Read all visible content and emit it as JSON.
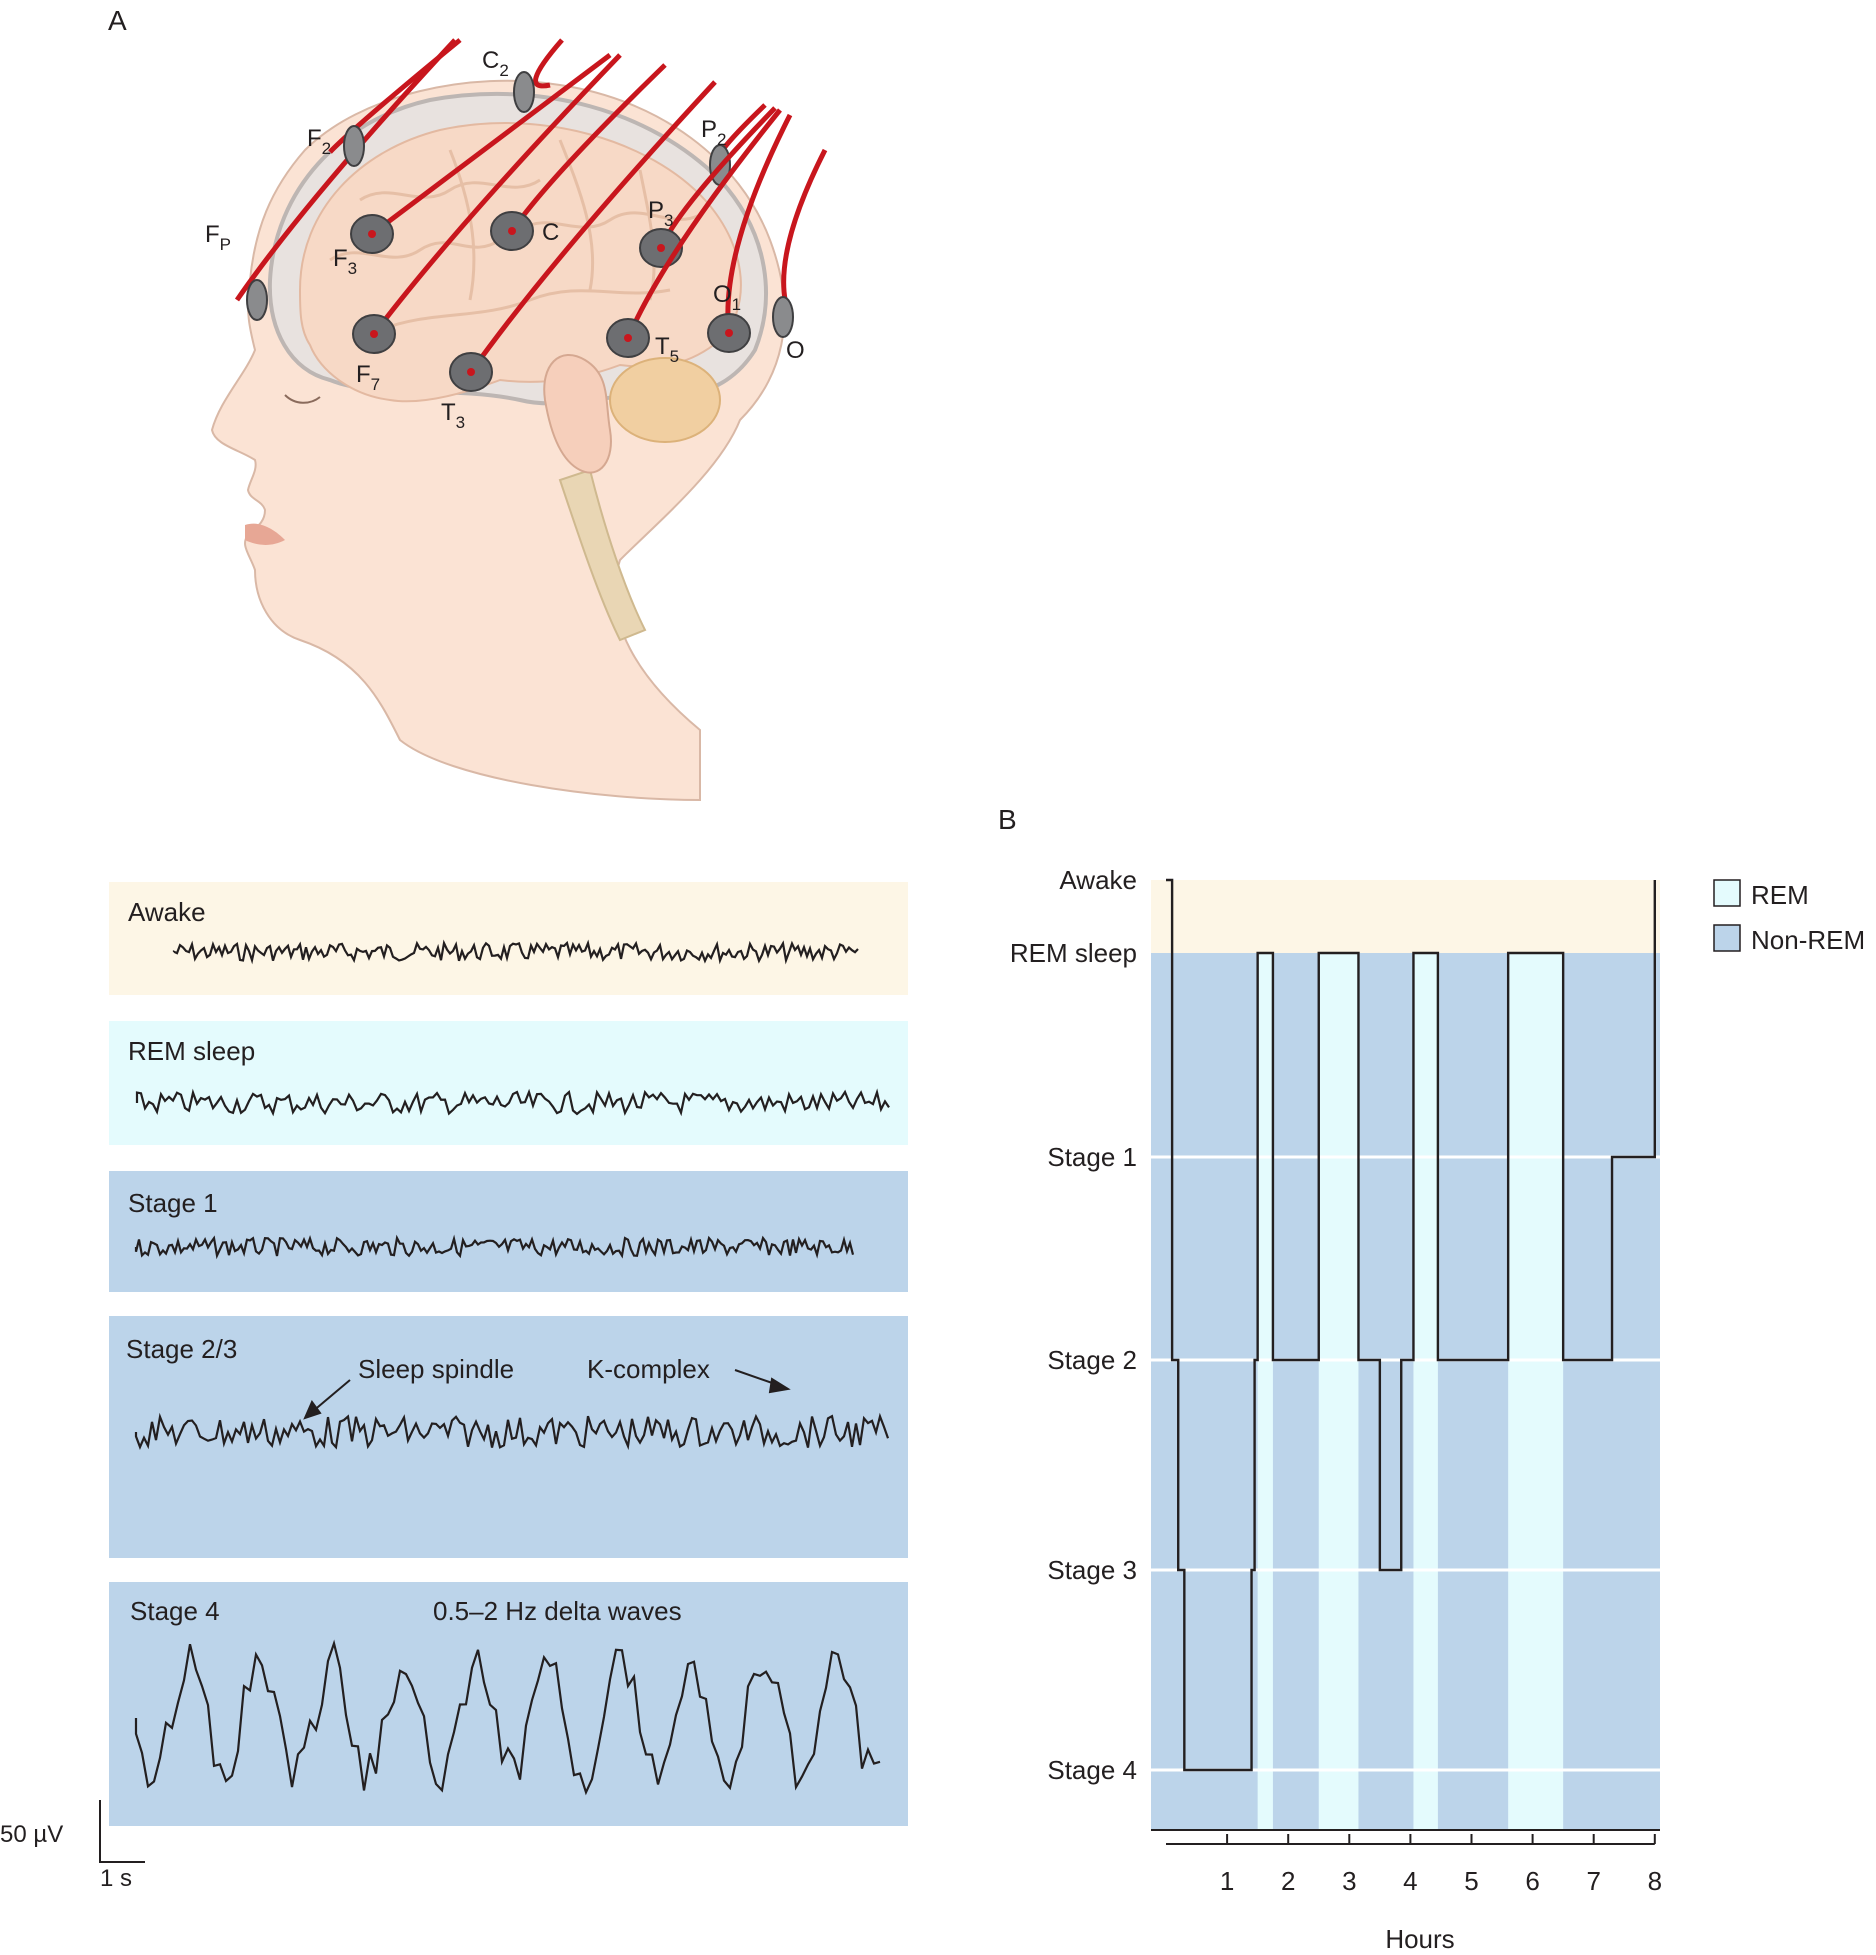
{
  "panel_a": {
    "label": "A",
    "electrodes": {
      "fp": {
        "base": "F",
        "sub": "P"
      },
      "f2": {
        "base": "F",
        "sub": "2"
      },
      "c2": {
        "base": "C",
        "sub": "2"
      },
      "p2": {
        "base": "P",
        "sub": "2"
      },
      "f3": {
        "base": "F",
        "sub": "3"
      },
      "c": {
        "base": "C",
        "sub": ""
      },
      "p3": {
        "base": "P",
        "sub": "3"
      },
      "o1": {
        "base": "O",
        "sub": "1"
      },
      "o": {
        "base": "O",
        "sub": ""
      },
      "f7": {
        "base": "F",
        "sub": "7"
      },
      "t3": {
        "base": "T",
        "sub": "3"
      },
      "t5": {
        "base": "T",
        "sub": "5"
      }
    },
    "traces": [
      {
        "label": "Awake",
        "color": "#fdf6e6"
      },
      {
        "label": "REM sleep",
        "color": "#e4fbfd"
      },
      {
        "label": "Stage 1",
        "color": "#bcd4ea"
      },
      {
        "label": "Stage 2/3",
        "color": "#bcd4ea",
        "annotations": [
          "Sleep spindle",
          "K-complex"
        ]
      },
      {
        "label": "Stage 4",
        "color": "#bcd4ea",
        "annotations": [
          "0.5–2 Hz delta waves"
        ]
      }
    ],
    "scale_bar": {
      "amplitude": "50 µV",
      "time": "1 s"
    }
  },
  "panel_b": {
    "label": "B",
    "chart_data": {
      "type": "line",
      "title": "",
      "xlabel": "Hours",
      "ylabel": "",
      "xlim": [
        0,
        8
      ],
      "x_ticks": [
        1,
        2,
        3,
        4,
        5,
        6,
        7,
        8
      ],
      "y_categories": [
        "Awake",
        "REM sleep",
        "Stage 1",
        "Stage 2",
        "Stage 3",
        "Stage 4"
      ],
      "hypnogram_steps": [
        {
          "start": 0.0,
          "end": 0.1,
          "stage": "Awake"
        },
        {
          "start": 0.1,
          "end": 0.2,
          "stage": "Stage 2"
        },
        {
          "start": 0.2,
          "end": 0.3,
          "stage": "Stage 3"
        },
        {
          "start": 0.3,
          "end": 1.4,
          "stage": "Stage 4"
        },
        {
          "start": 1.4,
          "end": 1.45,
          "stage": "Stage 3"
        },
        {
          "start": 1.45,
          "end": 1.5,
          "stage": "Stage 2"
        },
        {
          "start": 1.5,
          "end": 1.75,
          "stage": "REM sleep"
        },
        {
          "start": 1.75,
          "end": 2.5,
          "stage": "Stage 2"
        },
        {
          "start": 2.5,
          "end": 3.15,
          "stage": "REM sleep"
        },
        {
          "start": 3.15,
          "end": 3.5,
          "stage": "Stage 2"
        },
        {
          "start": 3.5,
          "end": 3.85,
          "stage": "Stage 3"
        },
        {
          "start": 3.85,
          "end": 4.05,
          "stage": "Stage 2"
        },
        {
          "start": 4.05,
          "end": 4.45,
          "stage": "REM sleep"
        },
        {
          "start": 4.45,
          "end": 5.6,
          "stage": "Stage 2"
        },
        {
          "start": 5.6,
          "end": 6.5,
          "stage": "REM sleep"
        },
        {
          "start": 6.5,
          "end": 7.3,
          "stage": "Stage 2"
        },
        {
          "start": 7.3,
          "end": 8.0,
          "stage": "Stage 1"
        },
        {
          "start": 8.0,
          "end": 8.0,
          "stage": "Awake"
        }
      ],
      "legend": {
        "position": "top-right",
        "entries": [
          {
            "name": "REM",
            "color": "#e4fbfd"
          },
          {
            "name": "Non-REM",
            "color": "#bcd4ea"
          }
        ]
      },
      "awake_color": "#fdf6e6",
      "line_color": "#231f20",
      "grid": "horizontal white lines at stage levels"
    }
  }
}
